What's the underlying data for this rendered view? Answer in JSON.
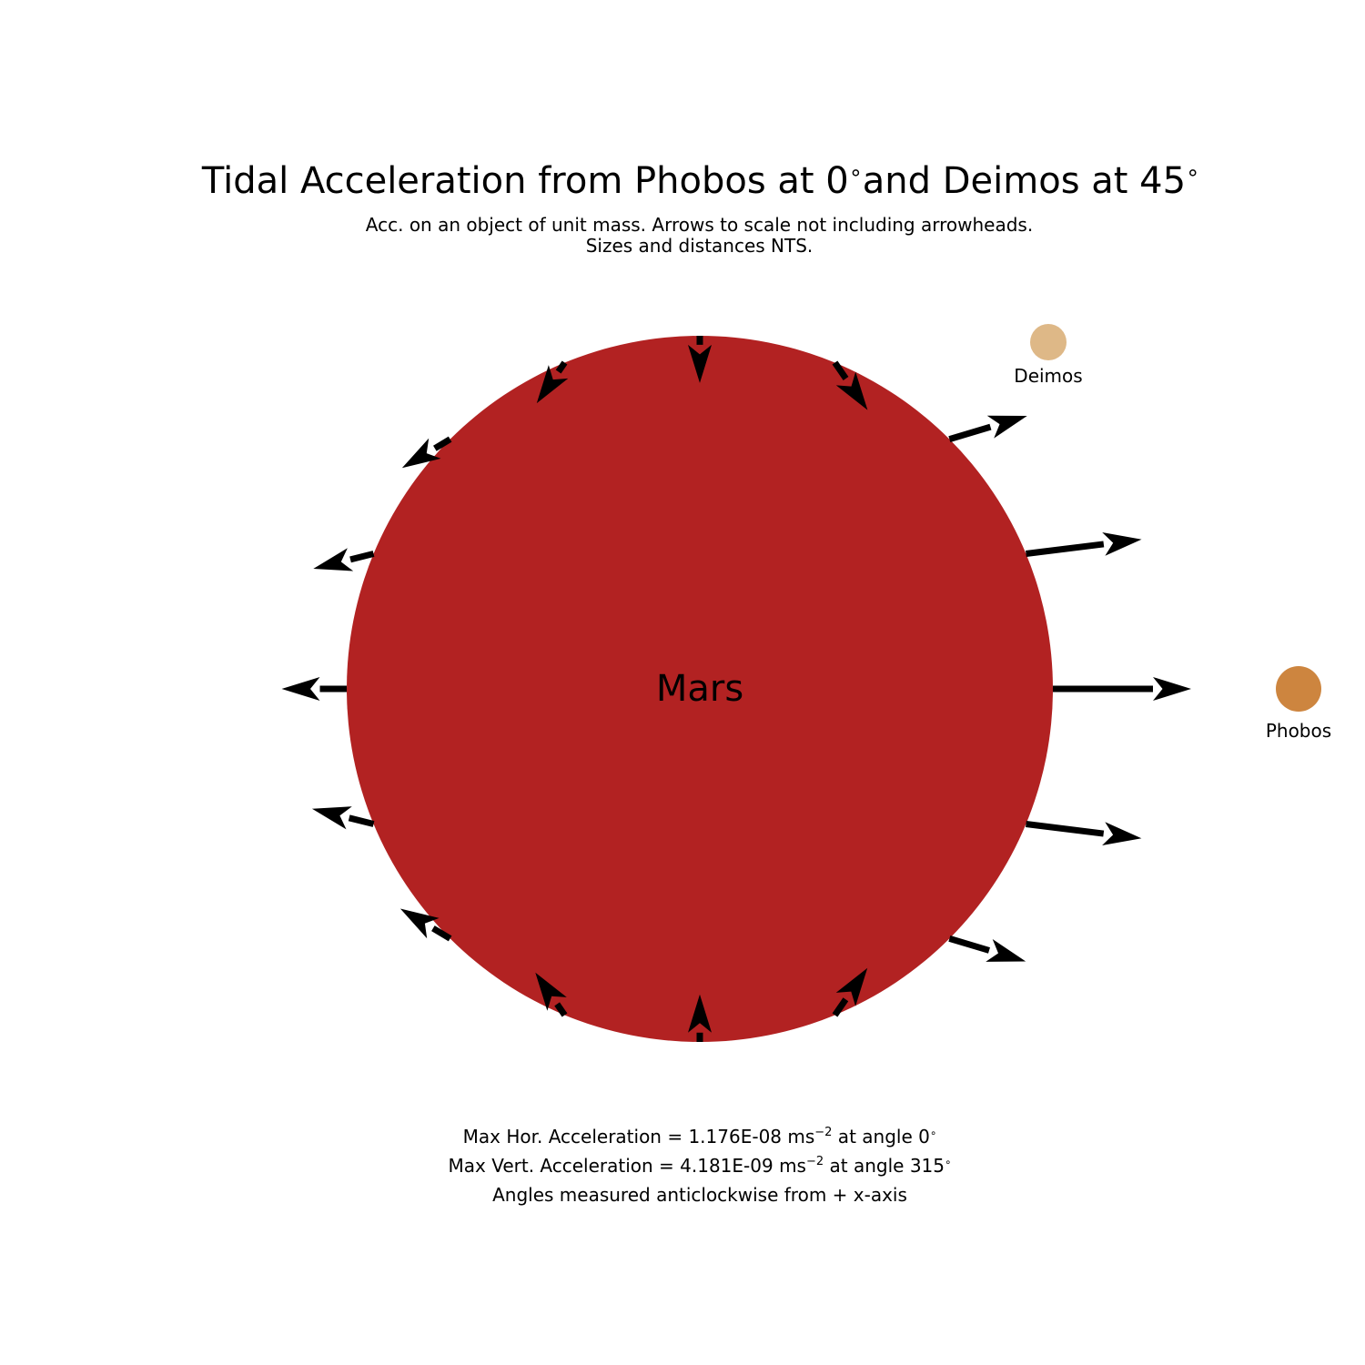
{
  "title": "Tidal Acceleration from Phobos at 0° and Deimos at 45°",
  "title_parts": {
    "pre": "Tidal Acceleration from Phobos at 0",
    "mid": "and Deimos at 45"
  },
  "subtitle": {
    "line1": "Acc. on an object of unit mass. Arrows to scale not including arrowheads.",
    "line2": "Sizes and distances NTS."
  },
  "bodies": {
    "mars": {
      "label": "Mars",
      "color": "#b22222"
    },
    "phobos": {
      "label": "Phobos",
      "color": "#cd853f",
      "angle_deg": 0
    },
    "deimos": {
      "label": "Deimos",
      "color": "#deb887",
      "angle_deg": 45
    }
  },
  "arrows": [
    {
      "angle_deg": 0,
      "length": 1.0
    },
    {
      "angle_deg": 22.5,
      "length": 0.782
    },
    {
      "angle_deg": 45,
      "length": 0.428
    },
    {
      "angle_deg": 67.5,
      "length": 0.193
    },
    {
      "angle_deg": 90,
      "length": 0.09
    },
    {
      "angle_deg": 112.5,
      "length": 0.11
    },
    {
      "angle_deg": 135,
      "length": 0.178
    },
    {
      "angle_deg": 157.5,
      "length": 0.239
    },
    {
      "angle_deg": 180,
      "length": 0.268
    },
    {
      "angle_deg": 202.5,
      "length": 0.252
    },
    {
      "angle_deg": 225,
      "length": 0.199
    },
    {
      "angle_deg": 247.5,
      "length": 0.134
    },
    {
      "angle_deg": 270,
      "length": 0.093
    },
    {
      "angle_deg": 292.5,
      "length": 0.19
    },
    {
      "angle_deg": 315,
      "length": 0.414
    },
    {
      "angle_deg": 337.5,
      "length": 0.781
    }
  ],
  "arrow_color": "#000000",
  "footer": {
    "hor_pre": "Max Hor. Acceleration = 1.176E-08 ms",
    "hor_exp": "−2",
    "hor_post": " at angle 0",
    "vert_pre": "Max Vert. Acceleration = 4.181E-09 ms",
    "vert_exp": "−2",
    "vert_post": " at angle 315",
    "note": "Angles measured anticlockwise from + x-axis"
  },
  "degree_symbol": "∘"
}
